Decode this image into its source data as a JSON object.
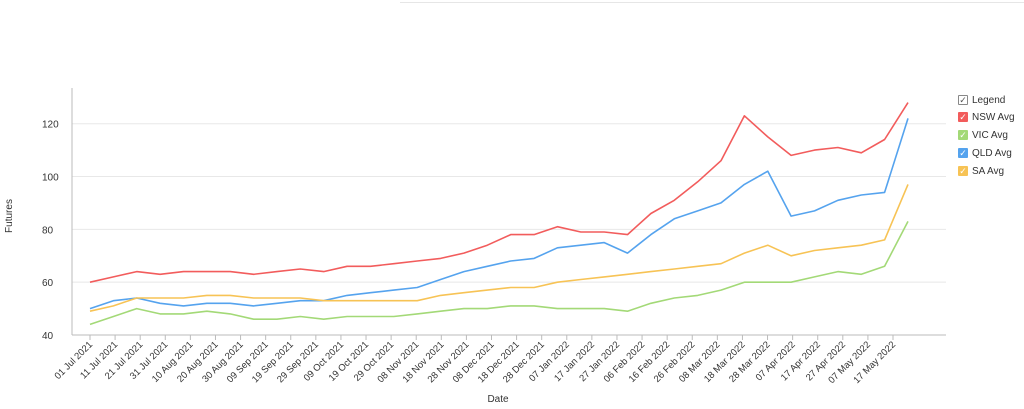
{
  "chart_data": {
    "type": "line",
    "title": "",
    "xlabel": "Date",
    "ylabel": "Futures",
    "ylim": [
      40,
      132
    ],
    "yticks": [
      40,
      60,
      80,
      100,
      120
    ],
    "grid": "horizontal",
    "legend_position": "right",
    "legend_title": "Legend",
    "x_tick_labels": [
      "01 Jul 2021",
      "11 Jul 2021",
      "21 Jul 2021",
      "31 Jul 2021",
      "10 Aug 2021",
      "20 Aug 2021",
      "30 Aug 2021",
      "09 Sep 2021",
      "19 Sep 2021",
      "29 Sep 2021",
      "09 Oct 2021",
      "19 Oct 2021",
      "29 Oct 2021",
      "08 Nov 2021",
      "18 Nov 2021",
      "28 Nov 2021",
      "08 Dec 2021",
      "18 Dec 2021",
      "28 Dec 2021",
      "07 Jan 2022",
      "17 Jan 2022",
      "27 Jan 2022",
      "06 Feb 2022",
      "16 Feb 2022",
      "26 Feb 2022",
      "08 Mar 2022",
      "18 Mar 2022",
      "28 Mar 2022",
      "07 Apr 2022",
      "17 Apr 2022",
      "27 Apr 2022",
      "07 May 2022",
      "17 May 2022"
    ],
    "series": [
      {
        "name": "NSW Avg",
        "color": "#f25c5c",
        "values": [
          60,
          62,
          64,
          63,
          64,
          64,
          64,
          63,
          64,
          65,
          64,
          66,
          66,
          67,
          68,
          69,
          71,
          74,
          78,
          78,
          81,
          79,
          79,
          78,
          86,
          91,
          98,
          106,
          123,
          115,
          108,
          110,
          111,
          109,
          114,
          128
        ]
      },
      {
        "name": "VIC Avg",
        "color": "#a3d977",
        "values": [
          44,
          47,
          50,
          48,
          48,
          49,
          48,
          46,
          46,
          47,
          46,
          47,
          47,
          47,
          48,
          49,
          50,
          50,
          51,
          51,
          50,
          50,
          50,
          49,
          52,
          54,
          55,
          57,
          60,
          60,
          60,
          62,
          64,
          63,
          66,
          83
        ]
      },
      {
        "name": "QLD Avg",
        "color": "#55a3ee",
        "values": [
          50,
          53,
          54,
          52,
          51,
          52,
          52,
          51,
          52,
          53,
          53,
          55,
          56,
          57,
          58,
          61,
          64,
          66,
          68,
          69,
          73,
          74,
          75,
          71,
          78,
          84,
          87,
          90,
          97,
          102,
          85,
          87,
          91,
          93,
          94,
          122
        ]
      },
      {
        "name": "SA Avg",
        "color": "#f7c355",
        "values": [
          49,
          51,
          54,
          54,
          54,
          55,
          55,
          54,
          54,
          54,
          53,
          53,
          53,
          53,
          53,
          55,
          56,
          57,
          58,
          58,
          60,
          61,
          62,
          63,
          64,
          65,
          66,
          67,
          71,
          74,
          70,
          72,
          73,
          74,
          76,
          97
        ]
      }
    ]
  }
}
